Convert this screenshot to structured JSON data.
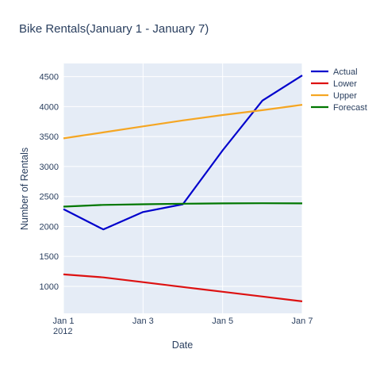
{
  "chart_data": {
    "type": "line",
    "title": "Bike Rentals(January 1 - January 7)",
    "xlabel": "Date",
    "ylabel": "Number of Rentals",
    "x": [
      "2012-01-01",
      "2012-01-02",
      "2012-01-03",
      "2012-01-04",
      "2012-01-05",
      "2012-01-06",
      "2012-01-07"
    ],
    "xlim": [
      "2012-01-01",
      "2012-01-07"
    ],
    "ylim": [
      550,
      4720
    ],
    "x_ticks": [
      {
        "date": "2012-01-01",
        "label": "Jan 1",
        "sublabel": "2012"
      },
      {
        "date": "2012-01-03",
        "label": "Jan 3",
        "sublabel": ""
      },
      {
        "date": "2012-01-05",
        "label": "Jan 5",
        "sublabel": ""
      },
      {
        "date": "2012-01-07",
        "label": "Jan 7",
        "sublabel": ""
      }
    ],
    "y_ticks": [
      1000,
      1500,
      2000,
      2500,
      3000,
      3500,
      4000,
      4500
    ],
    "grid": true,
    "legend_position": "top-right",
    "plot_background": "#e5ecf6",
    "series": [
      {
        "name": "Actual",
        "color": "#0000cc",
        "values": [
          2290,
          1950,
          2240,
          2370,
          3270,
          4100,
          4520
        ]
      },
      {
        "name": "Lower",
        "color": "#dd1111",
        "values": [
          1200,
          1150,
          1070,
          990,
          910,
          830,
          750
        ]
      },
      {
        "name": "Upper",
        "color": "#f5a623",
        "values": [
          3470,
          3570,
          3670,
          3770,
          3860,
          3940,
          4030
        ]
      },
      {
        "name": "Forecast",
        "color": "#007700",
        "values": [
          2330,
          2360,
          2370,
          2380,
          2385,
          2387,
          2385
        ]
      }
    ]
  }
}
